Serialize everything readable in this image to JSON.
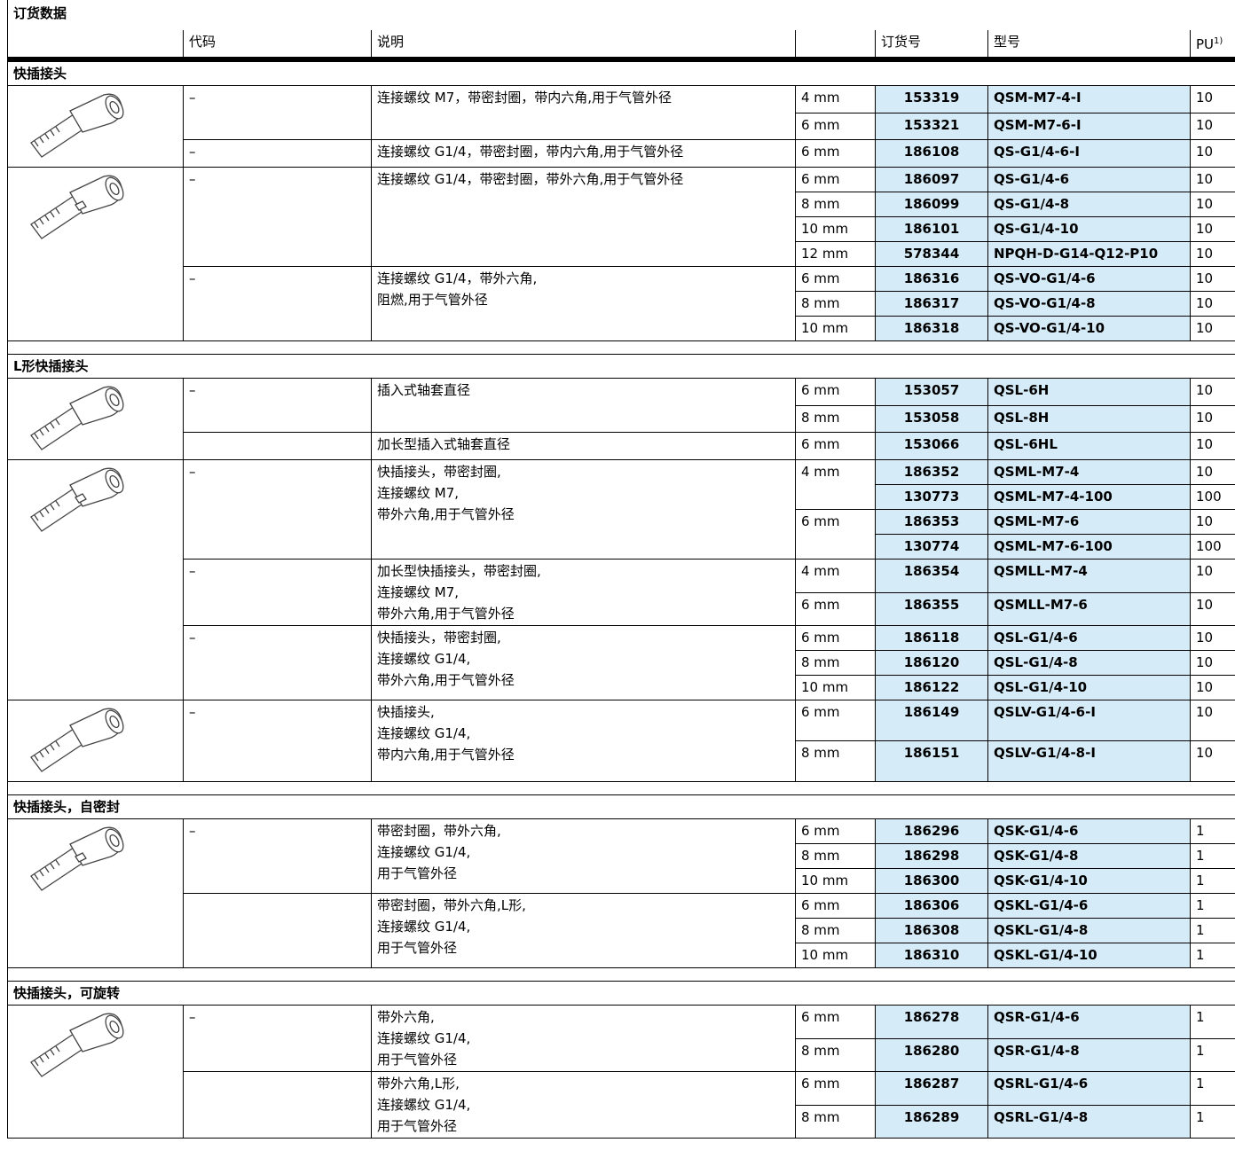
{
  "header": {
    "title": "订货数据",
    "columns": {
      "code": "代码",
      "description": "说明",
      "order_no": "订货号",
      "type": "型号",
      "pu": "PU",
      "pu_note": "1)"
    }
  },
  "sections": [
    {
      "title": "快插接头",
      "products": [
        {
          "variants": [
            {
              "code": "–",
              "description": [
                "连接螺纹 M7，带密封圈，带内六角,用于气管外径"
              ],
              "rows": [
                {
                  "size": "4 mm",
                  "order_no": 153319,
                  "type": "QSM-M7-4-I",
                  "pu": 10
                },
                {
                  "size": "6 mm",
                  "order_no": 153321,
                  "type": "QSM-M7-6-I",
                  "pu": 10
                }
              ]
            },
            {
              "code": "–",
              "description": [
                "连接螺纹 G1/4，带密封圈，带内六角,用于气管外径"
              ],
              "rows": [
                {
                  "size": "6 mm",
                  "order_no": 186108,
                  "type": "QS-G1/4-6-I",
                  "pu": 10
                }
              ]
            }
          ]
        },
        {
          "variants": [
            {
              "code": "–",
              "description": [
                "连接螺纹 G1/4，带密封圈，带外六角,用于气管外径"
              ],
              "rows": [
                {
                  "size": "6 mm",
                  "order_no": 186097,
                  "type": "QS-G1/4-6",
                  "pu": 10
                },
                {
                  "size": "8 mm",
                  "order_no": 186099,
                  "type": "QS-G1/4-8",
                  "pu": 10
                },
                {
                  "size": "10 mm",
                  "order_no": 186101,
                  "type": "QS-G1/4-10",
                  "pu": 10
                },
                {
                  "size": "12 mm",
                  "order_no": 578344,
                  "type": "NPQH-D-G14-Q12-P10",
                  "pu": 10
                }
              ]
            },
            {
              "code": "–",
              "description": [
                "连接螺纹 G1/4，带外六角,",
                "阻燃,用于气管外径"
              ],
              "rows": [
                {
                  "size": "6 mm",
                  "order_no": 186316,
                  "type": "QS-VO-G1/4-6",
                  "pu": 10
                },
                {
                  "size": "8 mm",
                  "order_no": 186317,
                  "type": "QS-VO-G1/4-8",
                  "pu": 10
                },
                {
                  "size": "10 mm",
                  "order_no": 186318,
                  "type": "QS-VO-G1/4-10",
                  "pu": 10
                }
              ]
            }
          ]
        }
      ]
    },
    {
      "title": "L形快插接头",
      "products": [
        {
          "variants": [
            {
              "code": "–",
              "description": [
                "插入式轴套直径"
              ],
              "rows": [
                {
                  "size": "6 mm",
                  "order_no": 153057,
                  "type": "QSL-6H",
                  "pu": 10
                },
                {
                  "size": "8 mm",
                  "order_no": 153058,
                  "type": "QSL-8H",
                  "pu": 10
                }
              ]
            },
            {
              "code": null,
              "description": [
                "加长型插入式轴套直径"
              ],
              "rows": [
                {
                  "size": "6 mm",
                  "order_no": 153066,
                  "type": "QSL-6HL",
                  "pu": 10
                }
              ]
            }
          ]
        },
        {
          "variants": [
            {
              "code": "–",
              "description": [
                "快插接头，带密封圈,",
                "连接螺纹 M7,",
                "带外六角,用于气管外径"
              ],
              "rows": [
                {
                  "size": "4 mm",
                  "order_no": 186352,
                  "type": "QSML-M7-4",
                  "pu": 10
                },
                {
                  "size": null,
                  "order_no": 130773,
                  "type": "QSML-M7-4-100",
                  "pu": 100
                },
                {
                  "size": "6 mm",
                  "order_no": 186353,
                  "type": "QSML-M7-6",
                  "pu": 10
                },
                {
                  "size": null,
                  "order_no": 130774,
                  "type": "QSML-M7-6-100",
                  "pu": 100
                }
              ]
            },
            {
              "code": "–",
              "description": [
                "加长型快插接头，带密封圈,",
                "连接螺纹 M7,",
                "带外六角,用于气管外径"
              ],
              "rows": [
                {
                  "size": "4 mm",
                  "order_no": 186354,
                  "type": "QSMLL-M7-4",
                  "pu": 10
                },
                {
                  "size": "6 mm",
                  "order_no": 186355,
                  "type": "QSMLL-M7-6",
                  "pu": 10
                }
              ]
            },
            {
              "code": "–",
              "description": [
                "快插接头，带密封圈,",
                "连接螺纹 G1/4,",
                "带外六角,用于气管外径"
              ],
              "rows": [
                {
                  "size": "6 mm",
                  "order_no": 186118,
                  "type": "QSL-G1/4-6",
                  "pu": 10
                },
                {
                  "size": "8 mm",
                  "order_no": 186120,
                  "type": "QSL-G1/4-8",
                  "pu": 10
                },
                {
                  "size": "10 mm",
                  "order_no": 186122,
                  "type": "QSL-G1/4-10",
                  "pu": 10
                }
              ]
            }
          ]
        },
        {
          "variants": [
            {
              "code": "–",
              "description": [
                "快插接头,",
                "连接螺纹 G1/4,",
                "带内六角,用于气管外径"
              ],
              "rows": [
                {
                  "size": "6 mm",
                  "order_no": 186149,
                  "type": "QSLV-G1/4-6-I",
                  "pu": 10
                },
                {
                  "size": "8 mm",
                  "order_no": 186151,
                  "type": "QSLV-G1/4-8-I",
                  "pu": 10
                }
              ]
            }
          ]
        }
      ]
    },
    {
      "title": "快插接头，自密封",
      "products": [
        {
          "variants": [
            {
              "code": "–",
              "description": [
                "带密封圈，带外六角,",
                "连接螺纹 G1/4,",
                "用于气管外径"
              ],
              "rows": [
                {
                  "size": "6 mm",
                  "order_no": 186296,
                  "type": "QSK-G1/4-6",
                  "pu": 1
                },
                {
                  "size": "8 mm",
                  "order_no": 186298,
                  "type": "QSK-G1/4-8",
                  "pu": 1
                },
                {
                  "size": "10 mm",
                  "order_no": 186300,
                  "type": "QSK-G1/4-10",
                  "pu": 1
                }
              ]
            },
            {
              "code": null,
              "description": [
                "带密封圈，带外六角,L形,",
                "连接螺纹 G1/4,",
                "用于气管外径"
              ],
              "rows": [
                {
                  "size": "6 mm",
                  "order_no": 186306,
                  "type": "QSKL-G1/4-6",
                  "pu": 1
                },
                {
                  "size": "8 mm",
                  "order_no": 186308,
                  "type": "QSKL-G1/4-8",
                  "pu": 1
                },
                {
                  "size": "10 mm",
                  "order_no": 186310,
                  "type": "QSKL-G1/4-10",
                  "pu": 1
                }
              ]
            }
          ]
        }
      ]
    },
    {
      "title": "快插接头，可旋转",
      "products": [
        {
          "variants": [
            {
              "code": "–",
              "description": [
                "带外六角,",
                "连接螺纹 G1/4,",
                "用于气管外径"
              ],
              "rows": [
                {
                  "size": "6 mm",
                  "order_no": 186278,
                  "type": "QSR-G1/4-6",
                  "pu": 1
                },
                {
                  "size": "8 mm",
                  "order_no": 186280,
                  "type": "QSR-G1/4-8",
                  "pu": 1
                }
              ]
            },
            {
              "code": null,
              "description": [
                "带外六角,L形,",
                "连接螺纹 G1/4,",
                "用于气管外径"
              ],
              "rows": [
                {
                  "size": "6 mm",
                  "order_no": 186287,
                  "type": "QSRL-G1/4-6",
                  "pu": 1
                },
                {
                  "size": "8 mm",
                  "order_no": 186289,
                  "type": "QSRL-G1/4-8",
                  "pu": 1
                }
              ]
            }
          ]
        }
      ]
    }
  ]
}
